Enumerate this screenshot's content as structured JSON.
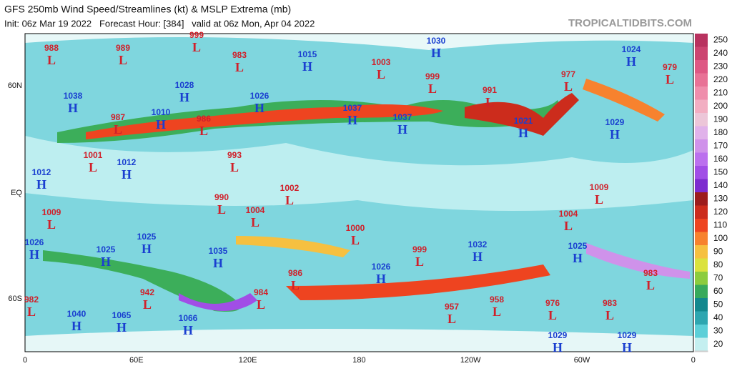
{
  "header": {
    "title": "GFS 250mb Wind Speed/Streamlines (kt) & MSLP Extrema (mb)",
    "subtitle": "Init: 06z Mar 19 2022   Forecast Hour: [384]   valid at 06z Mon, Apr 04 2022",
    "site": "TROPICALTIDBITS.COM"
  },
  "lat_labels": [
    "60N",
    "EQ",
    "60S"
  ],
  "lon_labels": [
    "0",
    "60E",
    "120E",
    "180",
    "120W",
    "60W",
    "0"
  ],
  "colorbar": {
    "labels": [
      250,
      240,
      230,
      220,
      210,
      200,
      190,
      180,
      170,
      160,
      150,
      140,
      130,
      120,
      110,
      100,
      90,
      80,
      70,
      60,
      50,
      40,
      30,
      20
    ],
    "colors": [
      "#b8325f",
      "#cc4470",
      "#de5884",
      "#e87296",
      "#ef8eac",
      "#f2aec2",
      "#ecc6d8",
      "#e0b2ea",
      "#cf92ea",
      "#bb70ee",
      "#a14ee6",
      "#7d2ccf",
      "#9c1c1c",
      "#cc2c1c",
      "#ee4420",
      "#f7822e",
      "#f6c040",
      "#dbe23e",
      "#8ccc3e",
      "#38aa5c",
      "#12888e",
      "#2ea6b0",
      "#5ccfd8",
      "#c4eff0"
    ]
  },
  "centers": [
    {
      "letter": "L",
      "value": 988
    },
    {
      "letter": "L",
      "value": 989
    },
    {
      "letter": "L",
      "value": 999
    },
    {
      "letter": "L",
      "value": 983
    },
    {
      "letter": "H",
      "value": 1015
    },
    {
      "letter": "L",
      "value": 1003
    },
    {
      "letter": "H",
      "value": 1030
    },
    {
      "letter": "L",
      "value": 999
    },
    {
      "letter": "H",
      "value": 1024
    },
    {
      "letter": "L",
      "value": 979
    },
    {
      "letter": "L",
      "value": 977
    },
    {
      "letter": "L",
      "value": 991
    },
    {
      "letter": "H",
      "value": 1021
    },
    {
      "letter": "H",
      "value": 1029
    },
    {
      "letter": "H",
      "value": 1038
    },
    {
      "letter": "H",
      "value": 1028
    },
    {
      "letter": "H",
      "value": 1010
    },
    {
      "letter": "L",
      "value": 987
    },
    {
      "letter": "L",
      "value": 986
    },
    {
      "letter": "H",
      "value": 1026
    },
    {
      "letter": "H",
      "value": 1037
    },
    {
      "letter": "H",
      "value": 1037
    },
    {
      "letter": "L",
      "value": 993
    },
    {
      "letter": "L",
      "value": 1001
    },
    {
      "letter": "H",
      "value": 1012
    },
    {
      "letter": "H",
      "value": 1012
    },
    {
      "letter": "L",
      "value": 1002
    },
    {
      "letter": "L",
      "value": 990
    },
    {
      "letter": "L",
      "value": 1004
    },
    {
      "letter": "L",
      "value": 1009
    },
    {
      "letter": "L",
      "value": 1009
    },
    {
      "letter": "L",
      "value": 1000
    },
    {
      "letter": "L",
      "value": 1004
    },
    {
      "letter": "H",
      "value": 1025
    },
    {
      "letter": "H",
      "value": 1026
    },
    {
      "letter": "H",
      "value": 1025
    },
    {
      "letter": "H",
      "value": 1035
    },
    {
      "letter": "L",
      "value": 999
    },
    {
      "letter": "H",
      "value": 1032
    },
    {
      "letter": "H",
      "value": 1025
    },
    {
      "letter": "L",
      "value": 986
    },
    {
      "letter": "H",
      "value": 1026
    },
    {
      "letter": "L",
      "value": 983
    },
    {
      "letter": "L",
      "value": 982
    },
    {
      "letter": "L",
      "value": 984
    },
    {
      "letter": "L",
      "value": 942
    },
    {
      "letter": "L",
      "value": 957
    },
    {
      "letter": "L",
      "value": 958
    },
    {
      "letter": "L",
      "value": 976
    },
    {
      "letter": "L",
      "value": 983
    },
    {
      "letter": "H",
      "value": 1040
    },
    {
      "letter": "H",
      "value": 1065
    },
    {
      "letter": "H",
      "value": 1066
    },
    {
      "letter": "H",
      "value": 1029
    },
    {
      "letter": "H",
      "value": 1029
    }
  ]
}
